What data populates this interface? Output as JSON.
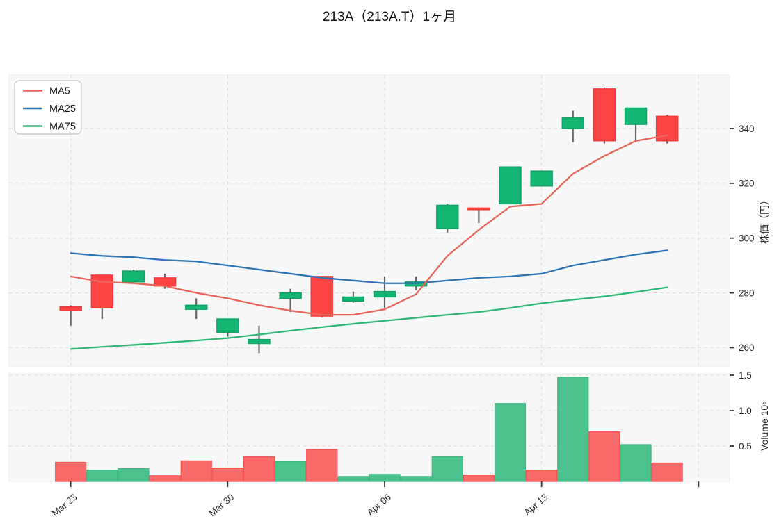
{
  "title": "213A（213A.T）1ヶ月",
  "legend": {
    "items": [
      {
        "label": "MA5",
        "series": "ma5"
      },
      {
        "label": "MA25",
        "series": "ma25"
      },
      {
        "label": "MA75",
        "series": "ma75"
      }
    ]
  },
  "chart_data": {
    "type": "candlestick",
    "title": "213A（213A.T）1ヶ月",
    "panels": [
      "price",
      "volume"
    ],
    "legend_position": "upper-left",
    "grid": "dashed",
    "dates": [
      "Mar 23",
      "Mar 24",
      "Mar 25",
      "Mar 26",
      "Mar 27",
      "Mar 30",
      "Mar 31",
      "Apr 01",
      "Apr 02",
      "Apr 03",
      "Apr 06",
      "Apr 07",
      "Apr 08",
      "Apr 09",
      "Apr 10",
      "Apr 13",
      "Apr 14",
      "Apr 15",
      "Apr 16",
      "Apr 17"
    ],
    "ohlc": [
      [
        275,
        275.5,
        268,
        273.5
      ],
      [
        286.5,
        286.5,
        270.5,
        274.5
      ],
      [
        284,
        288.5,
        283.5,
        288
      ],
      [
        285.5,
        287,
        281.5,
        282.5
      ],
      [
        274,
        278,
        270.5,
        275.5
      ],
      [
        265.5,
        270.5,
        264,
        270.5
      ],
      [
        261.5,
        268,
        258,
        263
      ],
      [
        278,
        281.5,
        273,
        280
      ],
      [
        286,
        286,
        271,
        271.5
      ],
      [
        277,
        280.5,
        276.5,
        278.5
      ],
      [
        278.5,
        286,
        274.5,
        280.5
      ],
      [
        282.5,
        286,
        281,
        284
      ],
      [
        303.5,
        312.5,
        302,
        312
      ],
      [
        311,
        311,
        305.5,
        310.5
      ],
      [
        312.5,
        326,
        312.5,
        326
      ],
      [
        319,
        324.5,
        319,
        324.5
      ],
      [
        340,
        346.5,
        335,
        344
      ],
      [
        354.5,
        355,
        334.5,
        335.5
      ],
      [
        341.5,
        347.5,
        335,
        347.5
      ],
      [
        344.5,
        345,
        334.5,
        335.5
      ]
    ],
    "volume_millions": [
      0.27,
      0.16,
      0.18,
      0.08,
      0.29,
      0.19,
      0.35,
      0.28,
      0.45,
      0.07,
      0.1,
      0.07,
      0.35,
      0.09,
      1.1,
      0.16,
      1.47,
      0.7,
      0.52,
      0.26
    ],
    "volume_direction": [
      "down",
      "up",
      "up",
      "down",
      "down",
      "down",
      "down",
      "up",
      "down",
      "up",
      "up",
      "up",
      "up",
      "down",
      "up",
      "down",
      "up",
      "down",
      "up",
      "down"
    ],
    "ma5": [
      286,
      284,
      283.5,
      282.5,
      280,
      278,
      275.5,
      273.5,
      272,
      272,
      274,
      279.5,
      293.5,
      303,
      311.5,
      312.5,
      323.5,
      330,
      335.5,
      337.5
    ],
    "ma25": [
      294.5,
      293.5,
      293,
      292,
      291.5,
      290,
      288.5,
      287,
      285.5,
      284.5,
      283.5,
      283.5,
      284.5,
      285.5,
      286,
      287,
      290,
      292,
      294,
      295.5
    ],
    "ma75": [
      259.5,
      260.3,
      261,
      261.8,
      262.6,
      263.5,
      264.8,
      266.2,
      267.5,
      268.7,
      269.8,
      270.9,
      272,
      273,
      274.5,
      276.2,
      277.5,
      278.7,
      280.3,
      282
    ],
    "x_ticks": [
      {
        "day": 0,
        "label": "Mar 23"
      },
      {
        "day": 5,
        "label": "Mar 30"
      },
      {
        "day": 10,
        "label": "Apr 06"
      },
      {
        "day": 15,
        "label": "Apr 13"
      },
      {
        "day": 20,
        "label": ""
      }
    ],
    "price_axis": {
      "label": "株価（円）",
      "ticks": [
        340,
        320,
        300,
        280,
        260
      ],
      "range": [
        253,
        359.5
      ]
    },
    "volume_axis": {
      "label": "Volume 10⁶",
      "tick_labels": [
        "1.5",
        "1.0",
        "0.5"
      ],
      "tick_values": [
        1.5,
        1.0,
        0.5
      ],
      "range": [
        0,
        1.52
      ]
    },
    "colors": {
      "candle_up": "#13b572",
      "candle_up_border": "#0da263",
      "candle_down": "#fd4343",
      "candle_down_border": "#ef3838",
      "wick": "#666666",
      "vol_up": "#4cc38f",
      "vol_up_border": "#3bb77f",
      "vol_down": "#f96a6a",
      "vol_down_border": "#f4504f",
      "ma5": "#e8655a",
      "ma25": "#2e75b6",
      "ma75": "#2eb873",
      "grid": "#dcdcdc",
      "panel_bg": "#f8f8f8",
      "tick": "#333333"
    }
  }
}
